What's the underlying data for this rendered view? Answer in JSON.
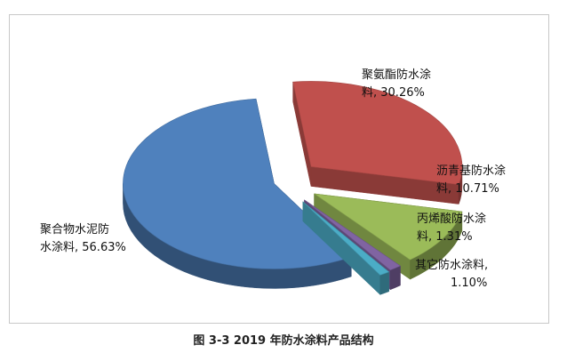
{
  "caption": "图 3-3 2019 年防水涂料产品结构",
  "chart_data": {
    "type": "pie",
    "title": "",
    "slices": [
      {
        "name": "聚氨酯防水涂料",
        "value": 30.26,
        "color": "#c0504d",
        "label_line1": "聚氨酯防水涂",
        "label_line2": "料, 30.26%"
      },
      {
        "name": "沥青基防水涂料",
        "value": 10.71,
        "color": "#9bbb59",
        "label_line1": "沥青基防水涂",
        "label_line2": "料, 10.71%"
      },
      {
        "name": "丙烯酸防水涂料",
        "value": 1.31,
        "color": "#8064a2",
        "label_line1": "丙烯酸防水涂",
        "label_line2": "料, 1.31%"
      },
      {
        "name": "其它防水涂料",
        "value": 1.1,
        "color": "#4bacc6",
        "label_line1": "其它防水涂料,",
        "label_line2": "1.10%"
      },
      {
        "name": "聚合物水泥防水涂料",
        "value": 56.63,
        "color": "#4f81bd",
        "label_line1": "聚合物水泥防",
        "label_line2": "水涂料, 56.63%"
      }
    ]
  }
}
